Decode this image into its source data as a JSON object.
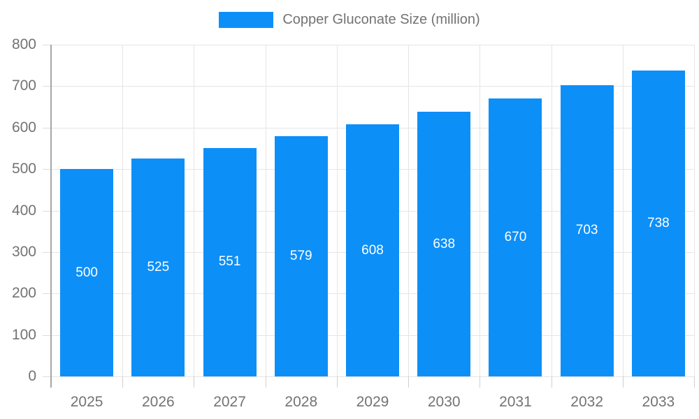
{
  "legend": {
    "label": "Copper Gluconate Size (million)"
  },
  "colors": {
    "bar": "#0d8ff8",
    "axis_text": "#737373",
    "grid_line": "#e5e5e5",
    "axis_line": "#a6a6a6",
    "value_text": "#ffffff"
  },
  "chart_data": {
    "type": "bar",
    "title": "Copper Gluconate Size (million)",
    "categories": [
      "2025",
      "2026",
      "2027",
      "2028",
      "2029",
      "2030",
      "2031",
      "2032",
      "2033"
    ],
    "series": [
      {
        "name": "Copper Gluconate Size (million)",
        "values": [
          500,
          525,
          551,
          579,
          608,
          638,
          670,
          703,
          738
        ]
      }
    ],
    "value_labels": [
      "500",
      "525",
      "551",
      "579",
      "608",
      "638",
      "670",
      "703",
      "738"
    ],
    "xlabel": "",
    "ylabel": "",
    "ylim": [
      0,
      800
    ],
    "ytick_step": 100,
    "ytick_labels": [
      "0",
      "100",
      "200",
      "300",
      "400",
      "500",
      "600",
      "700",
      "800"
    ],
    "grid": true,
    "legend_position": "top"
  }
}
